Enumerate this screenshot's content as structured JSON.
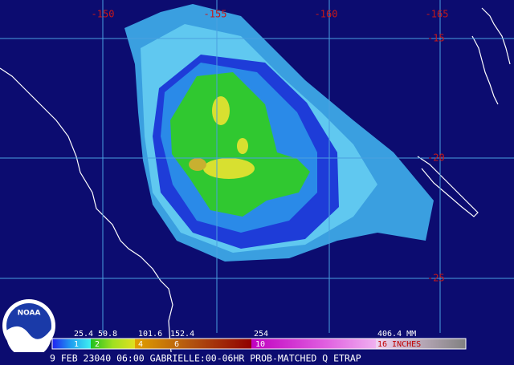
{
  "map": {
    "longitude_labels": [
      "-150",
      "-155",
      "-160",
      "-165"
    ],
    "latitude_labels": [
      "-15",
      "-20",
      "-25"
    ],
    "logo": "NOAA"
  },
  "legend": {
    "mm_labels": [
      "25.4",
      "50.8",
      "101.6",
      "152.4",
      "254",
      "406.4 MM"
    ],
    "inch_labels": [
      "1",
      "2",
      "4",
      "6",
      "10",
      "16 INCHES"
    ]
  },
  "caption": "9 FEB 23040 06:00 GABRIELLE:00-06HR PROB-MATCHED Q ETRAP"
}
